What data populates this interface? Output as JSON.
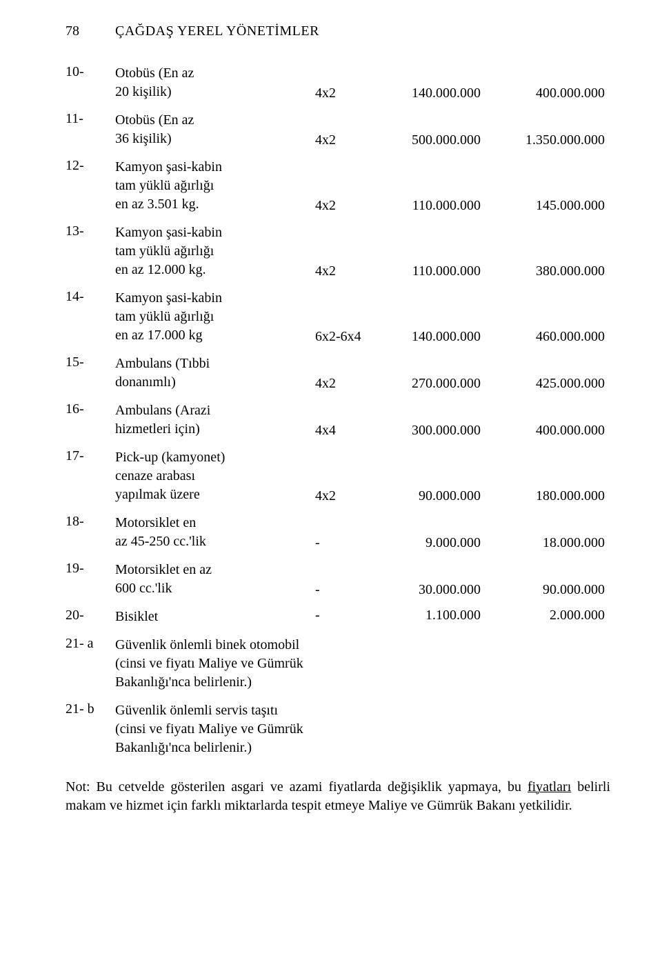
{
  "header": {
    "page_number": "78",
    "title": "ÇAĞDAŞ YEREL YÖNETİMLER"
  },
  "rows": [
    {
      "idx": "10-",
      "desc": "Otobüs (En az\n20 kişilik)",
      "spec": "4x2",
      "v1": "140.000.000",
      "v2": "400.000.000"
    },
    {
      "idx": "11-",
      "desc": "Otobüs (En az\n36 kişilik)",
      "spec": "4x2",
      "v1": "500.000.000",
      "v2": "1.350.000.000"
    },
    {
      "idx": "12-",
      "desc": "Kamyon şasi-kabin\ntam yüklü ağırlığı\nen az 3.501 kg.",
      "spec": "4x2",
      "v1": "110.000.000",
      "v2": "145.000.000"
    },
    {
      "idx": "13-",
      "desc": "Kamyon şasi-kabin\ntam yüklü ağırlığı\nen az 12.000 kg.",
      "spec": "4x2",
      "v1": "110.000.000",
      "v2": "380.000.000"
    },
    {
      "idx": "14-",
      "desc": "Kamyon şasi-kabin\ntam yüklü ağırlığı\nen az 17.000 kg",
      "spec": "6x2-6x4",
      "v1": "140.000.000",
      "v2": "460.000.000"
    },
    {
      "idx": "15-",
      "desc": "Ambulans (Tıbbi\ndonanımlı)",
      "spec": "4x2",
      "v1": "270.000.000",
      "v2": "425.000.000"
    },
    {
      "idx": "16-",
      "desc": "Ambulans (Arazi\nhizmetleri için)",
      "spec": "4x4",
      "v1": "300.000.000",
      "v2": "400.000.000"
    },
    {
      "idx": "17-",
      "desc": "Pick-up (kamyonet)\ncenaze arabası\nyapılmak üzere",
      "spec": "4x2",
      "v1": "90.000.000",
      "v2": "180.000.000"
    },
    {
      "idx": "18-",
      "desc": "Motorsiklet en\naz 45-250 cc.'lik",
      "spec": "-",
      "v1": "9.000.000",
      "v2": "18.000.000"
    },
    {
      "idx": "19-",
      "desc": "Motorsiklet en az\n600 cc.'lik",
      "spec": "-",
      "v1": "30.000.000",
      "v2": "90.000.000"
    },
    {
      "idx": "20-",
      "desc": "Bisiklet",
      "spec": "-",
      "v1": "1.100.000",
      "v2": "2.000.000"
    },
    {
      "idx": "21- a",
      "desc": "Güvenlik önlemli binek otomobil\n(cinsi ve fiyatı Maliye ve Gümrük\nBakanlığı'nca belirlenir.)",
      "spec": "",
      "v1": "",
      "v2": ""
    },
    {
      "idx": "21- b",
      "desc": "Güvenlik önlemli servis taşıtı\n(cinsi ve fiyatı Maliye ve Gümrük\nBakanlığı'nca belirlenir.)",
      "spec": "",
      "v1": "",
      "v2": ""
    }
  ],
  "note": {
    "text": "Not: Bu cetvelde gösterilen asgari ve azami fiyatlarda değişiklik yapmaya, bu fiyatları belirli makam ve hizmet için farklı miktarlarda tespit etmeye Maliye ve Gümrük Bakanı yetkilidir.",
    "underline_word": "fiyatları"
  },
  "style": {
    "font_family": "Times New Roman",
    "font_size_pt": 15,
    "text_color": "#000000",
    "background_color": "#ffffff",
    "column_widths": {
      "idx": 72,
      "desc": 290,
      "spec": 100,
      "v1": 155,
      "v2": 165
    }
  }
}
